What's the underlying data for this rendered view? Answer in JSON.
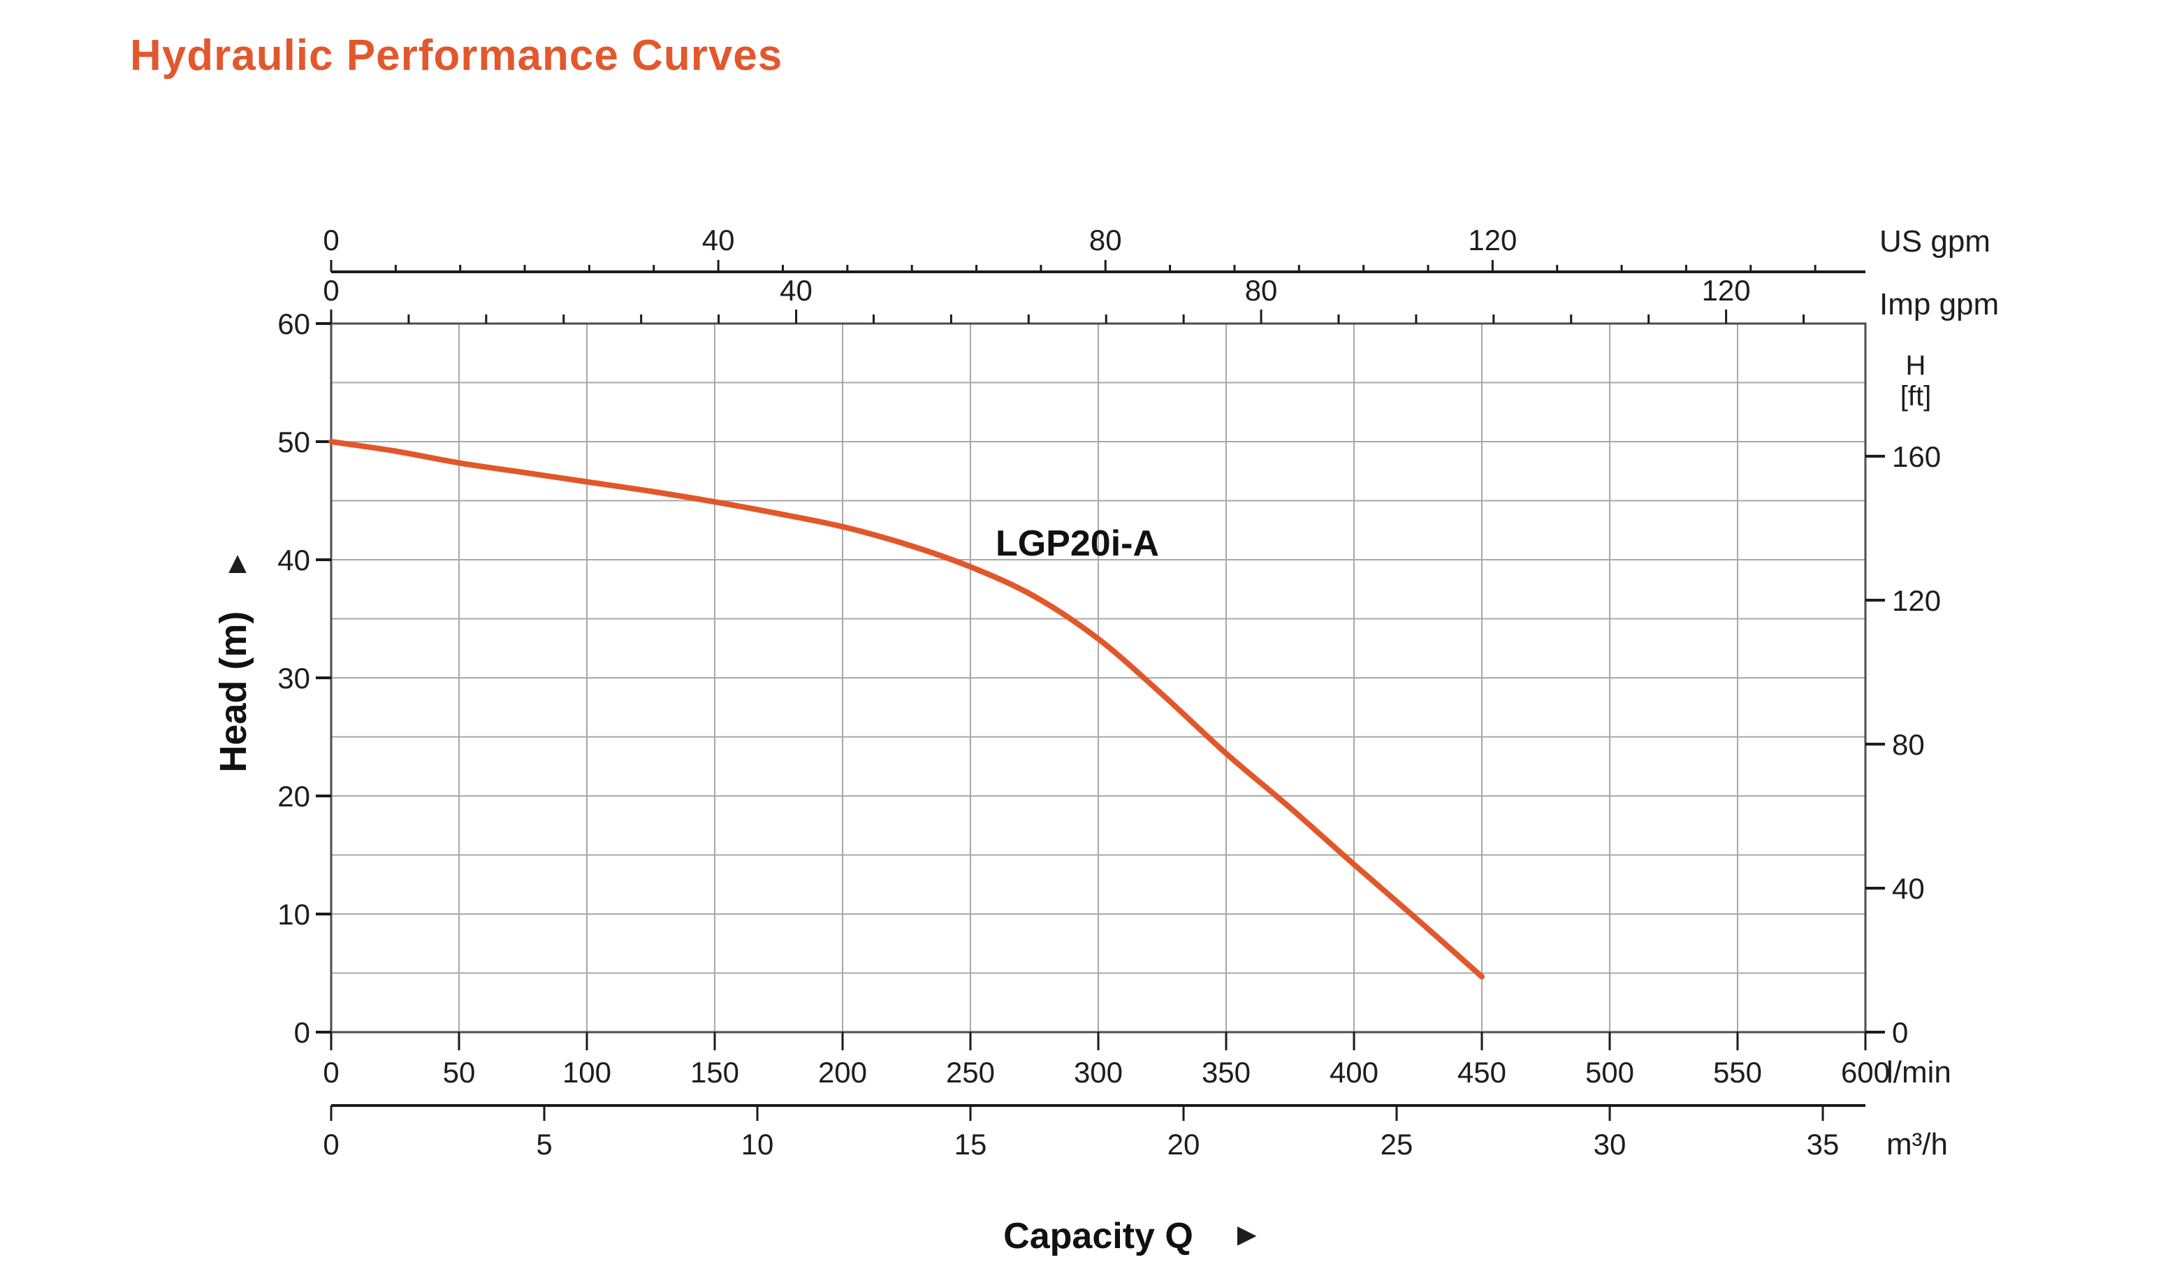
{
  "title": {
    "text": "Hydraulic Performance Curves",
    "color": "#E2582C"
  },
  "chart_data": {
    "type": "line",
    "title": "Hydraulic Performance Curves",
    "xlabel": "Capacity Q",
    "xlabel_arrow": "►",
    "ylabel": "Head (m)",
    "ylabel_arrow": "▲",
    "series": [
      {
        "name": "LGP20i-A",
        "color": "#E2572A",
        "x_lmin": [
          0,
          25,
          50,
          75,
          100,
          125,
          150,
          175,
          200,
          225,
          250,
          275,
          300,
          325,
          350,
          375,
          400,
          425,
          450
        ],
        "head_m": [
          50,
          49.2,
          48.2,
          47.4,
          46.6,
          45.8,
          44.9,
          43.9,
          42.8,
          41.3,
          39.4,
          36.9,
          33.3,
          28.6,
          23.6,
          19.0,
          14.2,
          9.5,
          4.7
        ]
      }
    ],
    "axes": {
      "top_outer": {
        "unit": "US gpm",
        "labeled_ticks": [
          0,
          40,
          80,
          120
        ],
        "minor_divisions_per_label": 6,
        "lmin_per_unit": 3.785
      },
      "top_inner": {
        "unit": "Imp gpm",
        "labeled_ticks": [
          0,
          40,
          80,
          120
        ],
        "minor_divisions_per_label": 6,
        "lmin_per_unit": 4.546
      },
      "bottom_main": {
        "unit": "l/min",
        "labeled_ticks": [
          0,
          50,
          100,
          150,
          200,
          250,
          300,
          350,
          400,
          450,
          500,
          550,
          600
        ],
        "lmin_per_unit": 1
      },
      "bottom_outer": {
        "unit": "m³/h",
        "labeled_ticks": [
          0,
          5,
          10,
          15,
          20,
          25,
          30,
          35
        ],
        "lmin_per_unit": 16.667
      },
      "left": {
        "unit": "m",
        "labeled_ticks": [
          0,
          10,
          20,
          30,
          40,
          50,
          60
        ],
        "range": [
          0,
          60
        ]
      },
      "right": {
        "label_line1": "H",
        "label_line2": "[ft]",
        "unit": "ft",
        "labeled_ticks": [
          0,
          40,
          80,
          120,
          160
        ],
        "m_per_unit": 0.3048
      }
    },
    "x_range_lmin": [
      0,
      600
    ],
    "grid": {
      "x_step_lmin": 50,
      "y_step_m": 5,
      "on": true,
      "color": "#A8A8A8"
    },
    "frame_color": "#4D4D4D",
    "axis_color": "#1A1A1A",
    "text_color": "#1D1D1D"
  }
}
